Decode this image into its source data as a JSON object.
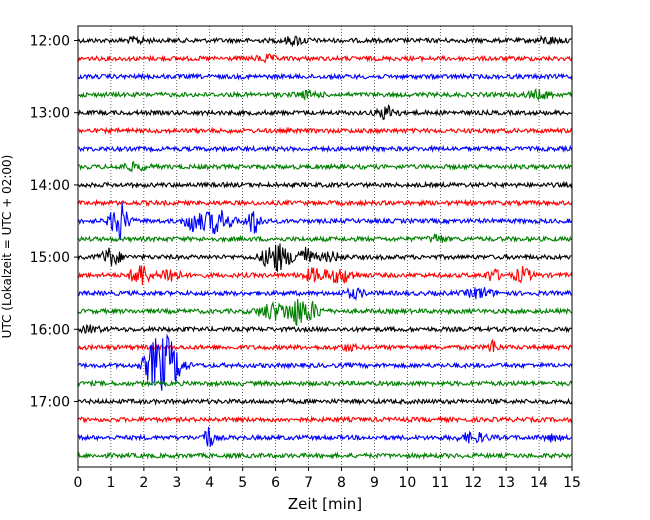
{
  "chart_data": {
    "type": "line",
    "title": "",
    "xlabel": "Zeit  [min]",
    "ylabel": "UTC (Lokalzeit = UTC + 02:00)",
    "xlim": [
      0,
      15
    ],
    "x_ticks": [
      "0",
      "1",
      "2",
      "3",
      "4",
      "5",
      "6",
      "7",
      "8",
      "9",
      "10",
      "11",
      "12",
      "13",
      "14",
      "15"
    ],
    "y_ticks": [
      "12:00",
      "13:00",
      "14:00",
      "15:00",
      "16:00",
      "17:00"
    ],
    "grid": "vertical dotted",
    "trace_interval_min": 15,
    "trace_colors": [
      "#000000",
      "#ff0000",
      "#0000ff",
      "#008000"
    ],
    "series": [
      {
        "start": "12:00",
        "bursts": [
          [
            1.8,
            0.4,
            0.2
          ],
          [
            6.6,
            0.5,
            0.25
          ],
          [
            14.3,
            0.5,
            0.2
          ]
        ]
      },
      {
        "start": "12:15",
        "bursts": [
          [
            5.7,
            0.4,
            0.2
          ]
        ]
      },
      {
        "start": "12:30",
        "bursts": []
      },
      {
        "start": "12:45",
        "bursts": [
          [
            7.0,
            0.5,
            0.2
          ],
          [
            14.0,
            0.5,
            0.25
          ]
        ]
      },
      {
        "start": "13:00",
        "bursts": [
          [
            9.4,
            0.4,
            0.45
          ]
        ]
      },
      {
        "start": "13:15",
        "bursts": []
      },
      {
        "start": "13:30",
        "bursts": []
      },
      {
        "start": "13:45",
        "bursts": [
          [
            1.7,
            0.6,
            0.2
          ]
        ]
      },
      {
        "start": "14:00",
        "bursts": []
      },
      {
        "start": "14:15",
        "bursts": []
      },
      {
        "start": "14:30",
        "bursts": [
          [
            1.25,
            0.35,
            1.4
          ],
          [
            3.5,
            0.35,
            0.7
          ],
          [
            4.2,
            0.6,
            0.85
          ],
          [
            5.35,
            0.3,
            0.9
          ]
        ]
      },
      {
        "start": "14:45",
        "bursts": [
          [
            10.9,
            0.3,
            0.3
          ]
        ]
      },
      {
        "start": "15:00",
        "bursts": [
          [
            1.0,
            0.4,
            0.6
          ],
          [
            6.0,
            0.55,
            1.0
          ],
          [
            6.85,
            0.4,
            0.7
          ],
          [
            7.7,
            0.4,
            0.3
          ]
        ]
      },
      {
        "start": "15:15",
        "bursts": [
          [
            1.9,
            0.4,
            0.8
          ],
          [
            2.8,
            0.35,
            0.6
          ],
          [
            7.2,
            0.5,
            0.45
          ],
          [
            8.0,
            0.5,
            0.5
          ],
          [
            12.6,
            0.3,
            0.4
          ],
          [
            13.5,
            0.35,
            0.5
          ]
        ]
      },
      {
        "start": "15:30",
        "bursts": [
          [
            8.4,
            0.4,
            0.3
          ],
          [
            12.2,
            0.5,
            0.35
          ]
        ]
      },
      {
        "start": "15:45",
        "bursts": [
          [
            5.9,
            0.6,
            0.55
          ],
          [
            6.7,
            0.5,
            0.95
          ],
          [
            7.2,
            0.3,
            0.4
          ]
        ]
      },
      {
        "start": "16:00",
        "bursts": [
          [
            0.4,
            0.4,
            0.2
          ]
        ]
      },
      {
        "start": "16:15",
        "bursts": [
          [
            8.2,
            0.3,
            0.2
          ],
          [
            12.6,
            0.2,
            0.5
          ]
        ]
      },
      {
        "start": "16:30",
        "bursts": [
          [
            2.3,
            0.4,
            1.5
          ],
          [
            2.7,
            0.4,
            1.6
          ],
          [
            3.0,
            0.4,
            0.6
          ]
        ]
      },
      {
        "start": "16:45",
        "bursts": []
      },
      {
        "start": "17:00",
        "bursts": []
      },
      {
        "start": "17:15",
        "bursts": []
      },
      {
        "start": "17:30",
        "bursts": [
          [
            3.95,
            0.2,
            0.85
          ],
          [
            12.0,
            0.6,
            0.3
          ],
          [
            14.4,
            0.3,
            0.2
          ]
        ]
      },
      {
        "start": "17:45",
        "bursts": []
      }
    ]
  }
}
